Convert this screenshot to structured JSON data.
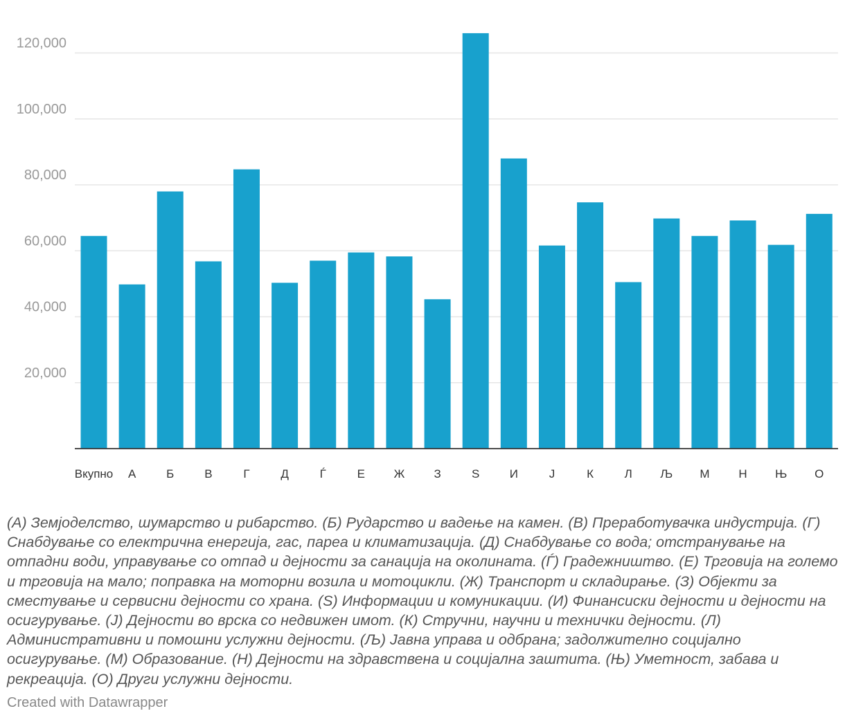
{
  "chart_data": {
    "type": "bar",
    "categories": [
      "Вкупно",
      "А",
      "Б",
      "В",
      "Г",
      "Д",
      "Ѓ",
      "Е",
      "Ж",
      "З",
      "S",
      "И",
      "Ј",
      "К",
      "Л",
      "Љ",
      "М",
      "Н",
      "Њ",
      "О"
    ],
    "values": [
      64500,
      49800,
      78000,
      56800,
      84700,
      50300,
      57000,
      59500,
      58300,
      45300,
      126000,
      88000,
      61600,
      74700,
      50500,
      69800,
      64500,
      69200,
      61800,
      71200
    ],
    "ylim": [
      0,
      126000
    ],
    "yticks": [
      20000,
      40000,
      60000,
      80000,
      100000,
      120000
    ],
    "ytick_labels": [
      "20,000",
      "40,000",
      "60,000",
      "80,000",
      "100,000",
      "120,000"
    ],
    "grid": true,
    "bar_color": "#18a1cd",
    "title": "",
    "xlabel": "",
    "ylabel": ""
  },
  "footnote": "(А) Земјоделство, шумарство и рибарство. (Б) Рударство и вадење на камен. (В) Преработувачка индустрија. (Г) Снабдување со електрична енергија, гас, пареа и климатизација. (Д) Снабдување со вода; отстранување на отпадни води, управување со отпад и дејности за санација на околината. (Ѓ) Градежништво. (Е) Трговија на големо и трговија на мало; поправка на моторни возила и мотоцикли. (Ж) Транспорт и складирање. (З) Објекти за сместување и сервисни дејности со храна. (S) Информации и комуникации. (И) Финансиски дејности и дејности на осигурување. (Ј) Дејности во врска со недвижен имот. (К) Стручни, научни и технички дејности. (Л) Административни и помошни услужни дејности. (Љ) Јавна управа и одбрана; задолжително социјално осигурување. (М) Образование. (Н) Дејности на здравствена и социјална заштита. (Њ) Уметност, забава и рекреација. (О) Други услужни дејности.",
  "credit": "Created with Datawrapper"
}
